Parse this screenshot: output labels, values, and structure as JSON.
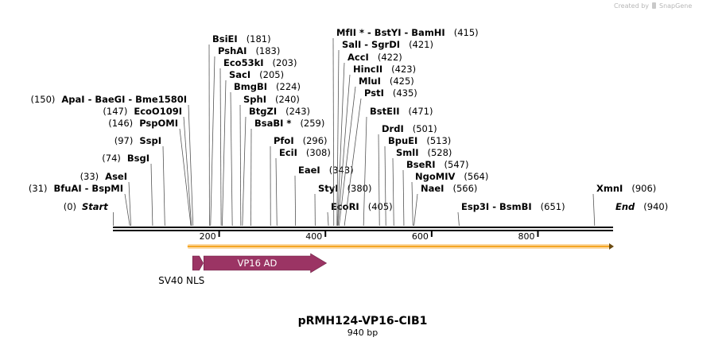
{
  "credit": {
    "prefix": "Created by",
    "brand": "SnapGene"
  },
  "map": {
    "title": "pRMH124-VP16-CIB1",
    "length_label": "940 bp",
    "total_bp": 940,
    "ruler_ticks": [
      {
        "bp": 200,
        "label": "200"
      },
      {
        "bp": 400,
        "label": "400"
      },
      {
        "bp": 600,
        "label": "600"
      },
      {
        "bp": 800,
        "label": "800"
      }
    ]
  },
  "features": [
    {
      "name": "VP16 AD",
      "start": 171,
      "end": 402,
      "color": "#9b3464",
      "label_inside": true
    },
    {
      "name": "SV40 NLS",
      "start": 150,
      "end": 170,
      "color": "#9b3464",
      "label_inside": false
    }
  ],
  "orf": {
    "start": 142,
    "end": 940,
    "color": "#f5a623"
  },
  "sites": [
    {
      "id": "start",
      "text": "Start",
      "pos": "(0)",
      "bp": 0,
      "side": "right",
      "italic": true
    },
    {
      "id": "bfuai",
      "text": "BfuAI  -  BspMI",
      "pos": "(31)",
      "bp": 31,
      "side": "left"
    },
    {
      "id": "asei",
      "text": "AseI",
      "pos": "(33)",
      "bp": 33,
      "side": "left"
    },
    {
      "id": "bsgi",
      "text": "BsgI",
      "pos": "(74)",
      "bp": 74,
      "side": "left"
    },
    {
      "id": "sspi",
      "text": "SspI",
      "pos": "(97)",
      "bp": 97,
      "side": "left"
    },
    {
      "id": "psp",
      "text": "PspOMI",
      "pos": "(146)",
      "bp": 146,
      "side": "left"
    },
    {
      "id": "eco109",
      "text": "EcoO109I",
      "pos": "(147)",
      "bp": 147,
      "side": "left"
    },
    {
      "id": "apai",
      "text": "ApaI  -  BaeGI  -  Bme1580I",
      "pos": "(150)",
      "bp": 150,
      "side": "left"
    },
    {
      "id": "bsiei",
      "text": "BsiEI",
      "pos": "(181)",
      "bp": 181,
      "side": "right"
    },
    {
      "id": "pshai",
      "text": "PshAI",
      "pos": "(183)",
      "bp": 183,
      "side": "right"
    },
    {
      "id": "eco53",
      "text": "Eco53kI",
      "pos": "(203)",
      "bp": 203,
      "side": "right"
    },
    {
      "id": "saci",
      "text": "SacI",
      "pos": "(205)",
      "bp": 205,
      "side": "right"
    },
    {
      "id": "bmgbi",
      "text": "BmgBI",
      "pos": "(224)",
      "bp": 224,
      "side": "right"
    },
    {
      "id": "sphi",
      "text": "SphI",
      "pos": "(240)",
      "bp": 240,
      "side": "right"
    },
    {
      "id": "btgzi",
      "text": "BtgZI",
      "pos": "(243)",
      "bp": 243,
      "side": "right"
    },
    {
      "id": "bsabi",
      "text": "BsaBI *",
      "pos": "(259)",
      "bp": 259,
      "side": "right"
    },
    {
      "id": "pfoi",
      "text": "PfoI",
      "pos": "(296)",
      "bp": 296,
      "side": "right"
    },
    {
      "id": "ecii",
      "text": "EciI",
      "pos": "(308)",
      "bp": 308,
      "side": "right"
    },
    {
      "id": "eaei",
      "text": "EaeI",
      "pos": "(343)",
      "bp": 343,
      "side": "right"
    },
    {
      "id": "styi",
      "text": "StyI",
      "pos": "(380)",
      "bp": 380,
      "side": "right"
    },
    {
      "id": "ecori",
      "text": "EcoRI",
      "pos": "(405)",
      "bp": 405,
      "side": "right"
    },
    {
      "id": "mfli",
      "text": "MfII *  -  BstYI  -  BamHI",
      "pos": "(415)",
      "bp": 415,
      "side": "right"
    },
    {
      "id": "sali",
      "text": "SalI  -  SgrDI",
      "pos": "(421)",
      "bp": 421,
      "side": "right"
    },
    {
      "id": "acci",
      "text": "AccI",
      "pos": "(422)",
      "bp": 422,
      "side": "right"
    },
    {
      "id": "hincii",
      "text": "HincII",
      "pos": "(423)",
      "bp": 423,
      "side": "right"
    },
    {
      "id": "mlui",
      "text": "MluI",
      "pos": "(425)",
      "bp": 425,
      "side": "right"
    },
    {
      "id": "psti",
      "text": "PstI",
      "pos": "(435)",
      "bp": 435,
      "side": "right"
    },
    {
      "id": "bsteii",
      "text": "BstEII",
      "pos": "(471)",
      "bp": 471,
      "side": "right"
    },
    {
      "id": "drdi",
      "text": "DrdI",
      "pos": "(501)",
      "bp": 501,
      "side": "right"
    },
    {
      "id": "bpuei",
      "text": "BpuEI",
      "pos": "(513)",
      "bp": 513,
      "side": "right"
    },
    {
      "id": "smli",
      "text": "SmlI",
      "pos": "(528)",
      "bp": 528,
      "side": "right"
    },
    {
      "id": "bseri",
      "text": "BseRI",
      "pos": "(547)",
      "bp": 547,
      "side": "right"
    },
    {
      "id": "ngomiv",
      "text": "NgoMIV",
      "pos": "(564)",
      "bp": 564,
      "side": "right"
    },
    {
      "id": "naei",
      "text": "NaeI",
      "pos": "(566)",
      "bp": 566,
      "side": "right"
    },
    {
      "id": "esp3i",
      "text": "Esp3I  -  BsmBI",
      "pos": "(651)",
      "bp": 651,
      "side": "right"
    },
    {
      "id": "xmni",
      "text": "XmnI",
      "pos": "(906)",
      "bp": 906,
      "side": "right"
    },
    {
      "id": "end",
      "text": "End",
      "pos": "(940)",
      "bp": 940,
      "side": "right",
      "italic": true
    }
  ]
}
